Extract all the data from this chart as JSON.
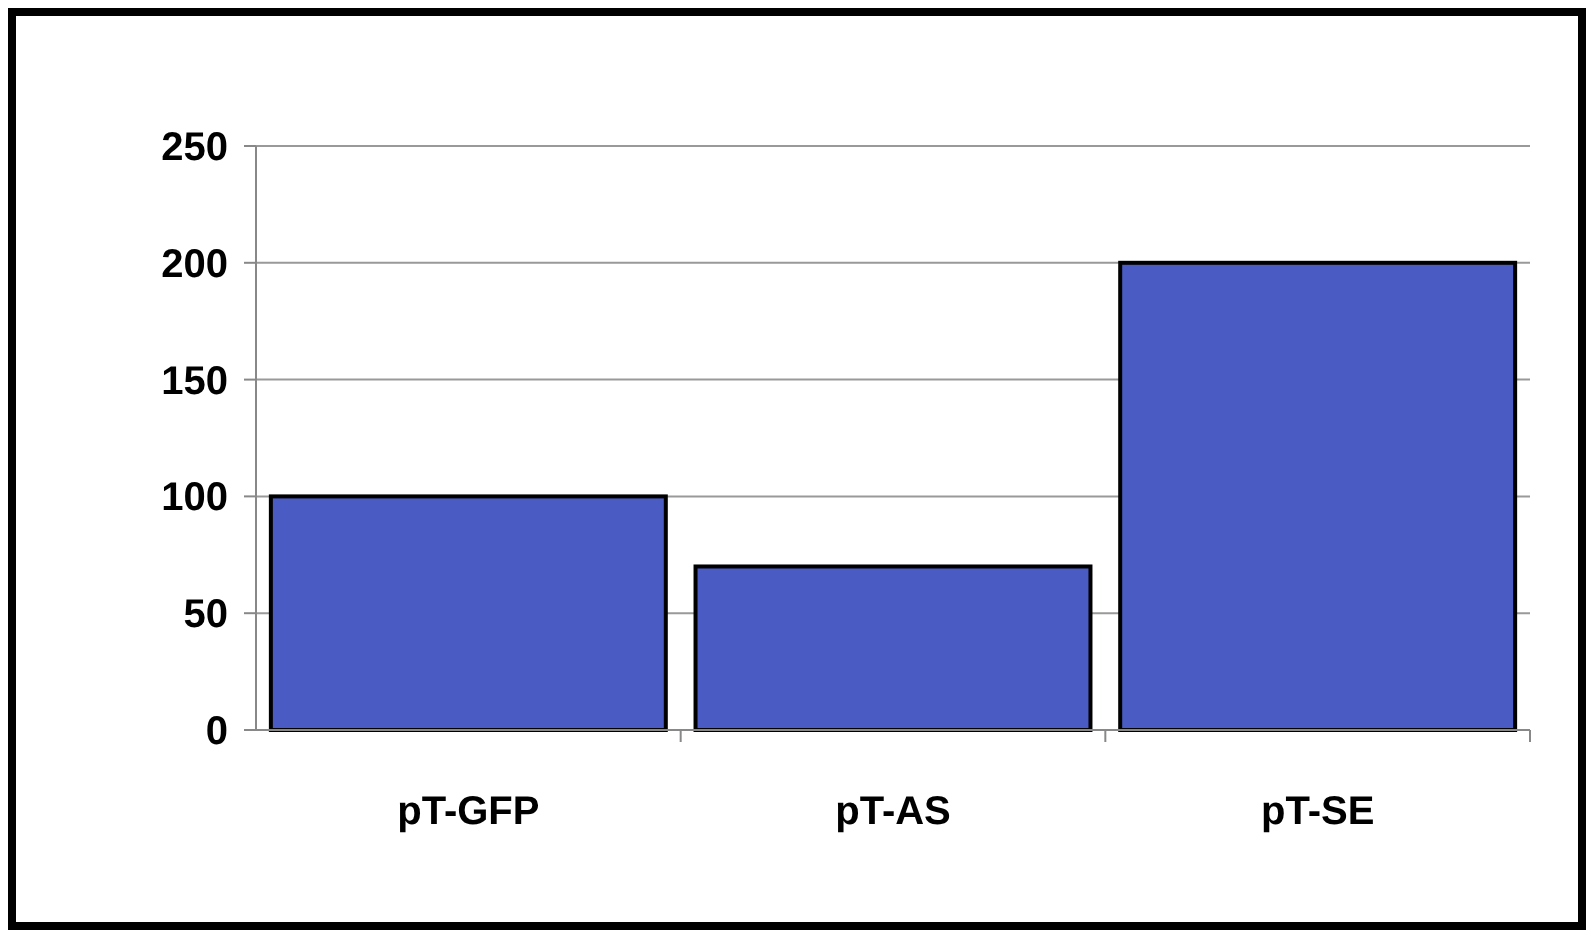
{
  "chart_data": {
    "type": "bar",
    "categories": [
      "pT-GFP",
      "pT-AS",
      "pT-SE"
    ],
    "values": [
      100,
      70,
      200
    ],
    "color": "#4a5cc4",
    "ylim": [
      0,
      250
    ],
    "yticks": [
      0,
      50,
      100,
      150,
      200,
      250
    ],
    "grid": "y"
  }
}
